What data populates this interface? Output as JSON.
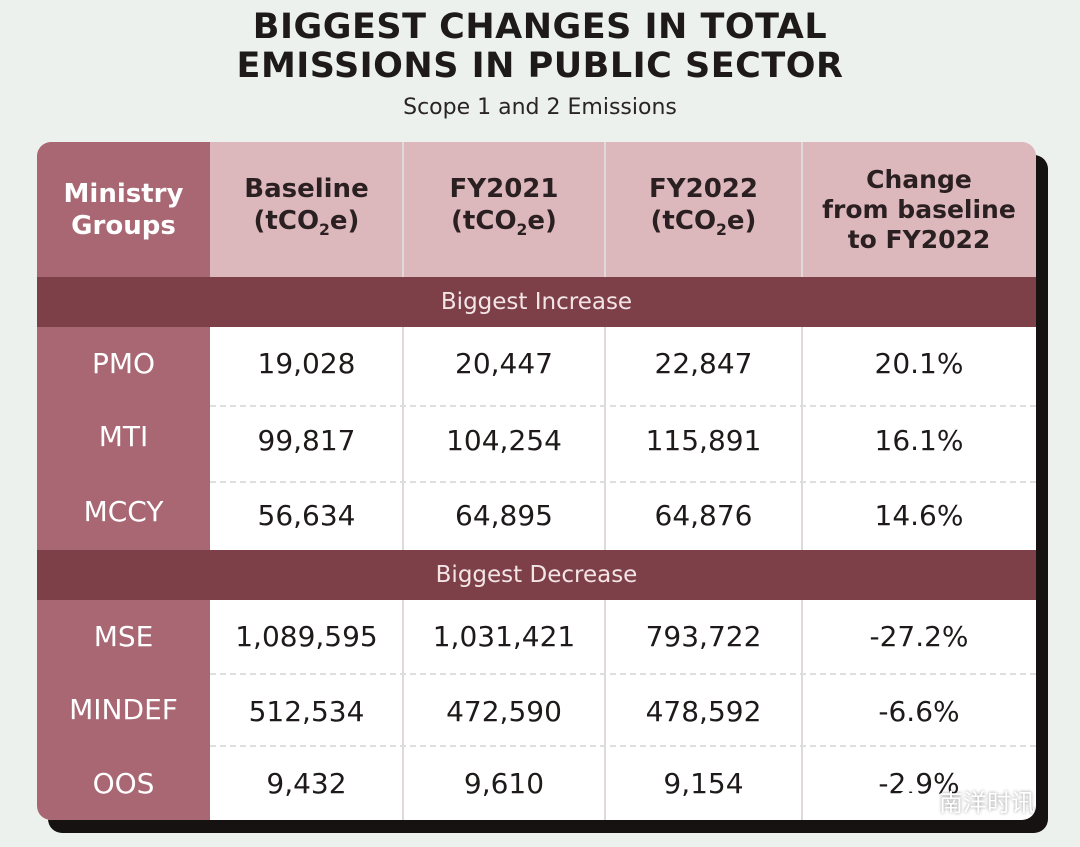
{
  "title": {
    "line1": "BIGGEST CHANGES IN TOTAL",
    "line2": "EMISSIONS IN PUBLIC SECTOR",
    "subtitle": "Scope 1 and 2 Emissions"
  },
  "table": {
    "headers": {
      "ministry": [
        "Ministry",
        "Groups"
      ],
      "baseline": [
        "Baseline",
        "(tCO",
        "2",
        "e)"
      ],
      "fy2021": [
        "FY2021",
        "(tCO",
        "2",
        "e)"
      ],
      "fy2022": [
        "FY2022",
        "(tCO",
        "2",
        "e)"
      ],
      "change": [
        "Change",
        "from baseline",
        "to FY2022"
      ]
    },
    "sections": [
      {
        "label": "Biggest Increase",
        "rows": [
          {
            "group": "PMO",
            "baseline": "19,028",
            "fy2021": "20,447",
            "fy2022": "22,847",
            "change": "20.1%"
          },
          {
            "group": "MTI",
            "baseline": "99,817",
            "fy2021": "104,254",
            "fy2022": "115,891",
            "change": "16.1%"
          },
          {
            "group": "MCCY",
            "baseline": "56,634",
            "fy2021": "64,895",
            "fy2022": "64,876",
            "change": "14.6%"
          }
        ]
      },
      {
        "label": "Biggest Decrease",
        "rows": [
          {
            "group": "MSE",
            "baseline": "1,089,595",
            "fy2021": "1,031,421",
            "fy2022": "793,722",
            "change": "-27.2%"
          },
          {
            "group": "MINDEF",
            "baseline": "512,534",
            "fy2021": "472,590",
            "fy2022": "478,592",
            "change": "-6.6%"
          },
          {
            "group": "OOS",
            "baseline": "9,432",
            "fy2021": "9,610",
            "fy2022": "9,154",
            "change": "-2.9%"
          }
        ]
      }
    ]
  },
  "watermark": {
    "text": "南洋时讯",
    "icon": "wechat-icon"
  },
  "colors": {
    "background": "#ecf1ee",
    "header_light": "#dcb7bc",
    "name_column": "#a86772",
    "section_stripe": "#7d4048",
    "shadow": "#161212"
  }
}
